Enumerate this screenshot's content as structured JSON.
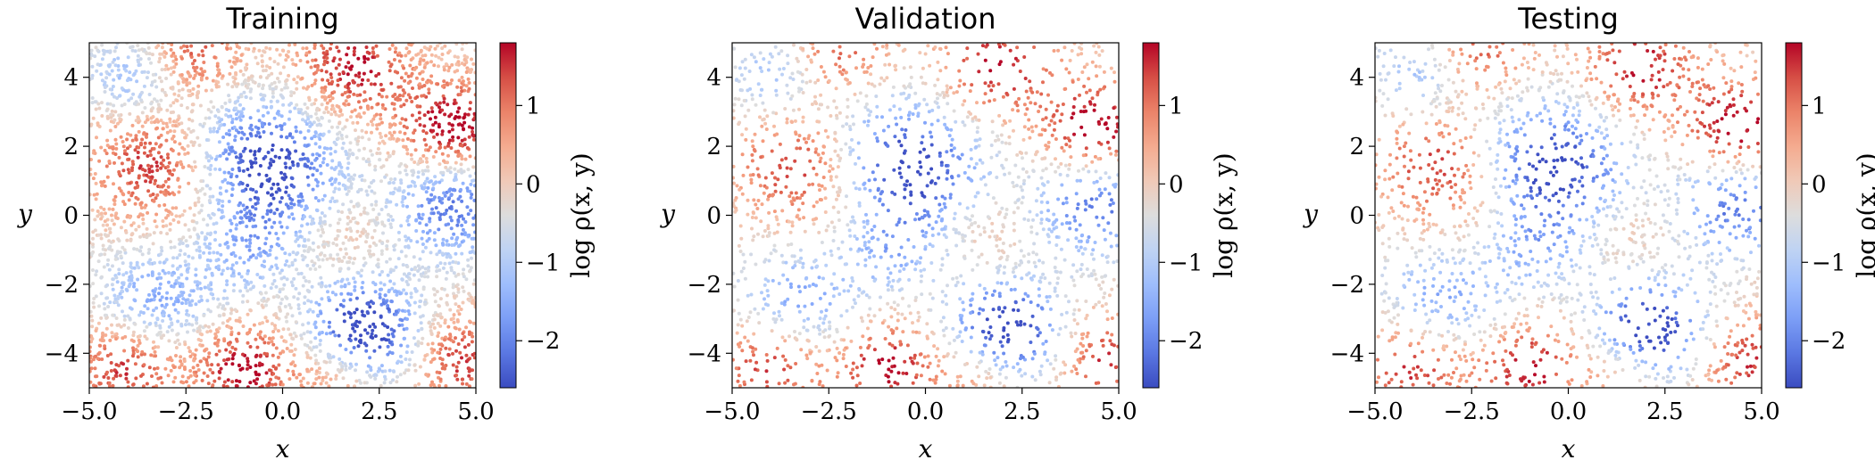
{
  "chart_data": [
    {
      "type": "scatter",
      "title": "Training",
      "xlabel": "x",
      "ylabel": "y",
      "xlim": [
        -5,
        5
      ],
      "ylim": [
        -5,
        5
      ],
      "xticks": [
        "−5.0",
        "−2.5",
        "0.0",
        "2.5",
        "5.0"
      ],
      "yticks": [
        "−4",
        "−2",
        "0",
        "2",
        "4"
      ],
      "colorbar": {
        "label": "log ρ(x, y)",
        "range": [
          -2.6,
          1.8
        ],
        "ticks": [
          "−2",
          "−1",
          "0",
          "1"
        ],
        "colormap": "coolwarm"
      },
      "n_points": 4200
    },
    {
      "type": "scatter",
      "title": "Validation",
      "xlabel": "x",
      "ylabel": "y",
      "xlim": [
        -5,
        5
      ],
      "ylim": [
        -5,
        5
      ],
      "xticks": [
        "−5.0",
        "−2.5",
        "0.0",
        "2.5",
        "5.0"
      ],
      "yticks": [
        "−4",
        "−2",
        "0",
        "2",
        "4"
      ],
      "colorbar": {
        "label": "log ρ(x, y)",
        "range": [
          -2.6,
          1.8
        ],
        "ticks": [
          "−2",
          "−1",
          "0",
          "1"
        ],
        "colormap": "coolwarm"
      },
      "n_points": 2000
    },
    {
      "type": "scatter",
      "title": "Testing",
      "xlabel": "x",
      "ylabel": "y",
      "xlim": [
        -5,
        5
      ],
      "ylim": [
        -5,
        5
      ],
      "xticks": [
        "−5.0",
        "−2.5",
        "0.0",
        "2.5",
        "5.0"
      ],
      "yticks": [
        "−4",
        "−2",
        "0",
        "2",
        "4"
      ],
      "colorbar": {
        "label": "log ρ(x, y)",
        "range": [
          -2.6,
          1.8
        ],
        "ticks": [
          "−2",
          "−1",
          "0",
          "1"
        ],
        "colormap": "coolwarm"
      },
      "n_points": 2000
    }
  ]
}
